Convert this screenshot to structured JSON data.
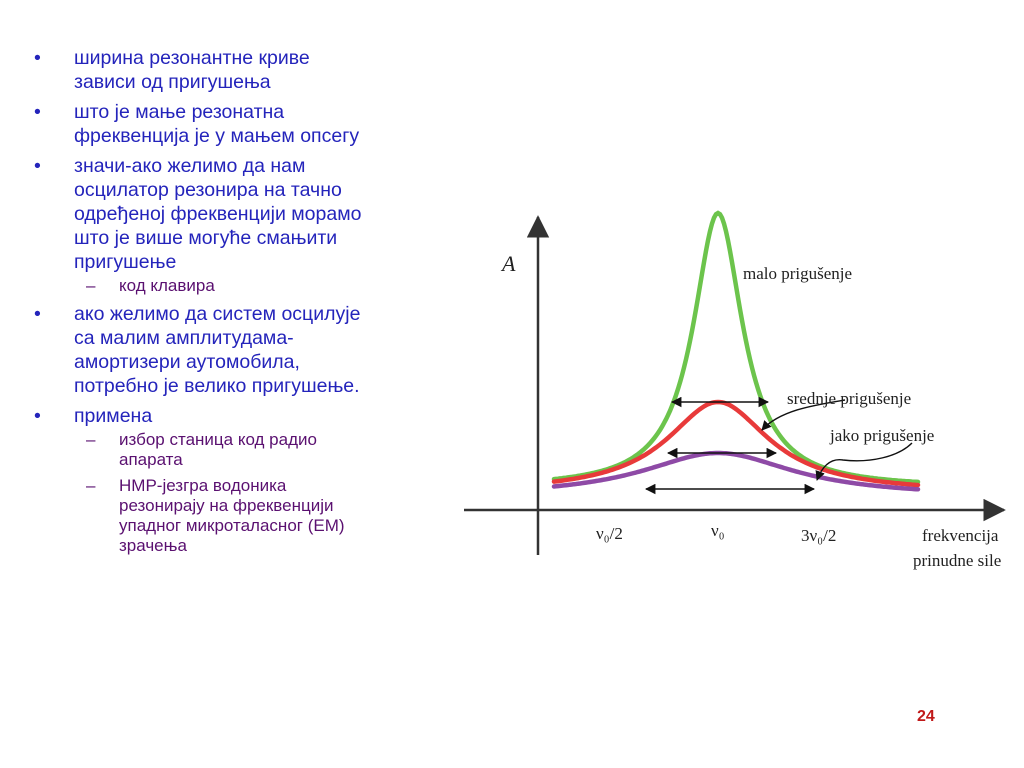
{
  "bullets": [
    {
      "text": "ширина резонантне криве зависи од пригушења",
      "sub": []
    },
    {
      "text": "што је мање резонатна фреквенција је у мањем опсегу",
      "sub": []
    },
    {
      "text": "значи-ако желимо да нам осцилатор резонира на тачно одређеној фреквенцији морамо што је више могуће смањити пригушење",
      "sub": [
        "код клавира"
      ]
    },
    {
      "text": "ако желимо да систем осцилује са малим амплитудама-амортизери аутомобила, потребно је велико пригушење.",
      "sub": []
    },
    {
      "text": "примена",
      "sub": [
        "избор станица код радио апарата",
        "НМР-језгра водоника резонирају на фреквенцији упадног микроталасног (ЕМ) зрачења"
      ]
    }
  ],
  "bullet_marker": "•",
  "sub_marker": "–",
  "graph": {
    "y_axis_label": "A",
    "x_axis_label_line1": "frekvencija",
    "x_axis_label_line2": "prinudne sile",
    "ticks": {
      "half": "ν₀/2",
      "center": "ν₀",
      "three_half": "3ν₀/2"
    },
    "curves": [
      {
        "label": "malo prigušenje",
        "color": "#6cc44c"
      },
      {
        "label": "srednje prigušenje",
        "color": "#e83a3a"
      },
      {
        "label": "jako prigušenje",
        "color": "#8e4aa6"
      }
    ],
    "arrow_color": "#111111"
  },
  "page_number": "24"
}
